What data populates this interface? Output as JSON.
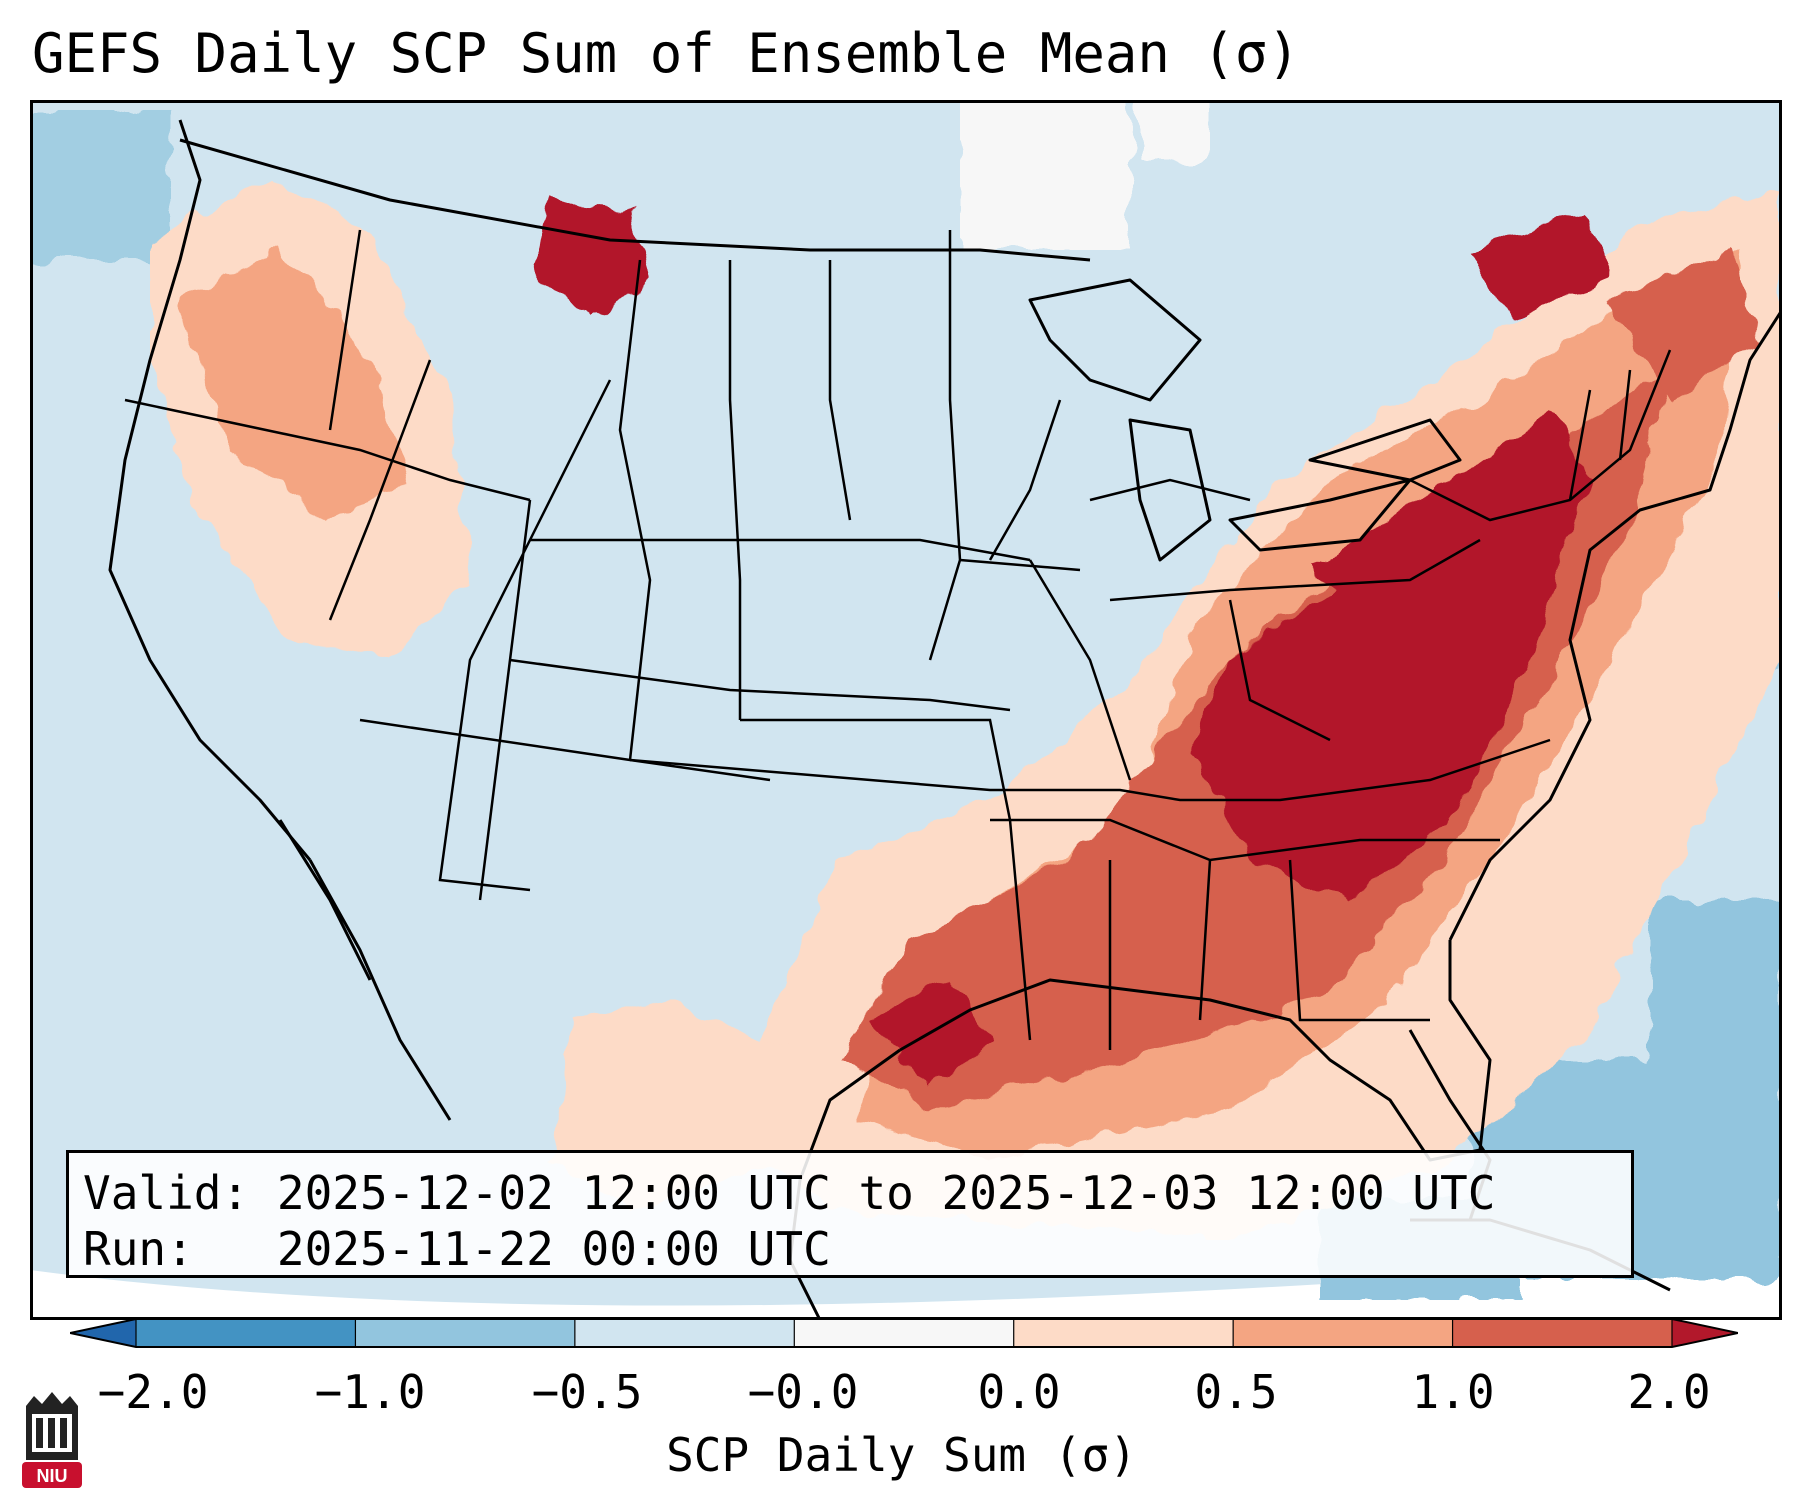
{
  "title": "GEFS Daily SCP Sum of Ensemble Mean (σ)",
  "info": {
    "valid_label": "Valid:",
    "valid_value": "2025-12-02 12:00 UTC to 2025-12-03 12:00 UTC",
    "run_label": "Run:  ",
    "run_value": "2025-11-22 00:00 UTC"
  },
  "colorbar": {
    "label": "SCP Daily Sum (σ)",
    "ticks": [
      "−2.0",
      "−1.0",
      "−0.5",
      "−0.0",
      "0.0",
      "0.5",
      "1.0",
      "2.0"
    ],
    "bin_colors": [
      "#4393c3",
      "#92c5de",
      "#d1e5f0",
      "#f7f7f7",
      "#fddbc7",
      "#f4a582",
      "#d6604d"
    ],
    "under_color": "#2166ac",
    "over_color": "#b2182b"
  },
  "map_colors": {
    "ocean": "#c4dbe8",
    "land_base": "#d1e5f0",
    "light_pos": "#fddbc7",
    "mid_pos": "#f4a582",
    "high_pos": "#d6604d",
    "max_pos": "#b2182b",
    "neg": "#92c5de",
    "near_zero": "#f7f7f7"
  },
  "logo": {
    "text": "NIU",
    "icon": "university-logo-icon"
  }
}
